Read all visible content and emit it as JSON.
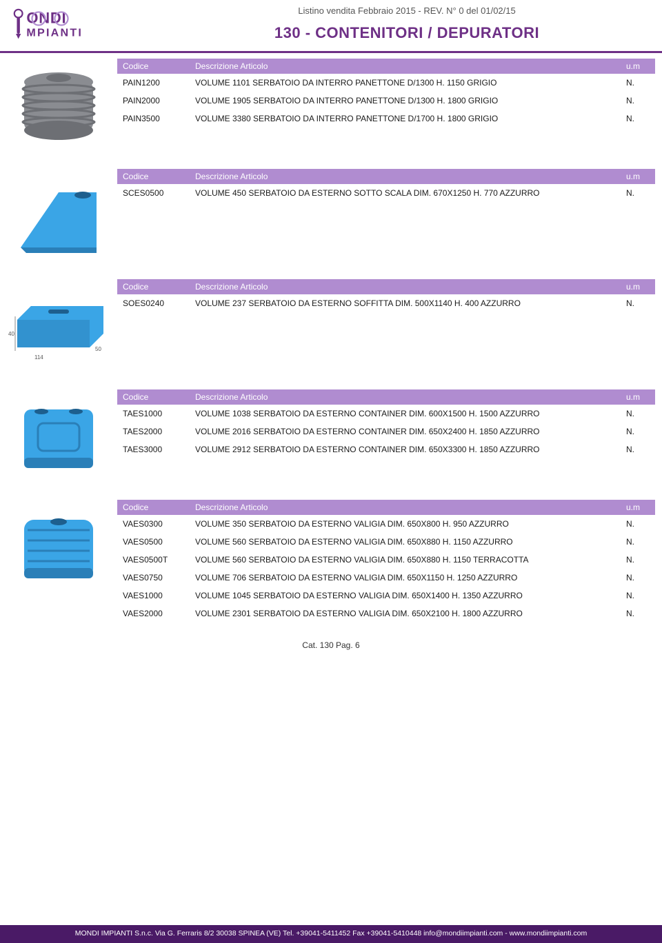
{
  "colors": {
    "brand_purple": "#6e3086",
    "table_header_bg": "#b08cd0",
    "table_header_fg": "#ffffff",
    "footer_bg": "#4a1a66",
    "footer_fg": "#ffffff",
    "listino_fg": "#555555"
  },
  "header": {
    "logo_text_top": "ONDI",
    "logo_text_bottom": "MPIANTI",
    "listino": "Listino vendita Febbraio 2015 - REV. N° 0 del 01/02/15",
    "category": "130 - CONTENITORI / DEPURATORI"
  },
  "table_headers": {
    "code": "Codice",
    "desc": "Descrizione Articolo",
    "um": "u.m"
  },
  "sections": [
    {
      "image_kind": "tank_grey_round",
      "rows": [
        {
          "code": "PAIN1200",
          "desc": "VOLUME 1101 SERBATOIO DA INTERRO PANETTONE D/1300 H. 1150 GRIGIO",
          "um": "N."
        },
        {
          "code": "PAIN2000",
          "desc": "VOLUME 1905 SERBATOIO DA INTERRO PANETTONE D/1300 H. 1800 GRIGIO",
          "um": "N."
        },
        {
          "code": "PAIN3500",
          "desc": "VOLUME 3380 SERBATOIO DA INTERRO PANETTONE D/1700 H. 1800 GRIGIO",
          "um": "N."
        }
      ]
    },
    {
      "image_kind": "tank_blue_wedge",
      "rows": [
        {
          "code": "SCES0500",
          "desc": "VOLUME 450 SERBATOIO DA ESTERNO SOTTO SCALA DIM. 670X1250 H. 770 AZZURRO",
          "um": "N."
        }
      ]
    },
    {
      "image_kind": "tank_blue_chest",
      "rows": [
        {
          "code": "SOES0240",
          "desc": "VOLUME 237 SERBATOIO DA ESTERNO SOFFITTA DIM. 500X1140 H. 400 AZZURRO",
          "um": "N."
        }
      ]
    },
    {
      "image_kind": "tank_blue_slim",
      "rows": [
        {
          "code": "TAES1000",
          "desc": "VOLUME 1038 SERBATOIO DA ESTERNO CONTAINER DIM. 600X1500 H. 1500 AZZURRO",
          "um": "N."
        },
        {
          "code": "TAES2000",
          "desc": "VOLUME 2016 SERBATOIO DA ESTERNO CONTAINER DIM. 650X2400 H. 1850 AZZURRO",
          "um": "N."
        },
        {
          "code": "TAES3000",
          "desc": "VOLUME 2912 SERBATOIO DA ESTERNO CONTAINER DIM. 650X3300 H. 1850 AZZURRO",
          "um": "N."
        }
      ]
    },
    {
      "image_kind": "tank_blue_valise",
      "rows": [
        {
          "code": "VAES0300",
          "desc": "VOLUME 350 SERBATOIO DA ESTERNO VALIGIA DIM. 650X800 H. 950 AZZURRO",
          "um": "N."
        },
        {
          "code": "VAES0500",
          "desc": "VOLUME 560 SERBATOIO DA ESTERNO VALIGIA DIM. 650X880 H. 1150 AZZURRO",
          "um": "N."
        },
        {
          "code": "VAES0500T",
          "desc": "VOLUME 560 SERBATOIO DA ESTERNO VALIGIA DIM. 650X880 H. 1150 TERRACOTTA",
          "um": "N."
        },
        {
          "code": "VAES0750",
          "desc": "VOLUME 706 SERBATOIO DA ESTERNO VALIGIA DIM. 650X1150 H. 1250 AZZURRO",
          "um": "N."
        },
        {
          "code": "VAES1000",
          "desc": "VOLUME 1045 SERBATOIO DA ESTERNO VALIGIA DIM. 650X1400 H. 1350 AZZURRO",
          "um": "N."
        },
        {
          "code": "VAES2000",
          "desc": "VOLUME 2301 SERBATOIO DA ESTERNO VALIGIA DIM. 650X2100 H. 1800 AZZURRO",
          "um": "N."
        }
      ]
    }
  ],
  "footer": {
    "page_line": "Cat. 130 Pag. 6",
    "address_line": "MONDI IMPIANTI S.n.c. Via G. Ferraris 8/2 30038 SPINEA (VE) Tel. +39041-5411452 Fax +39041-5410448  info@mondiimpianti.com - www.mondiimpianti.com"
  }
}
